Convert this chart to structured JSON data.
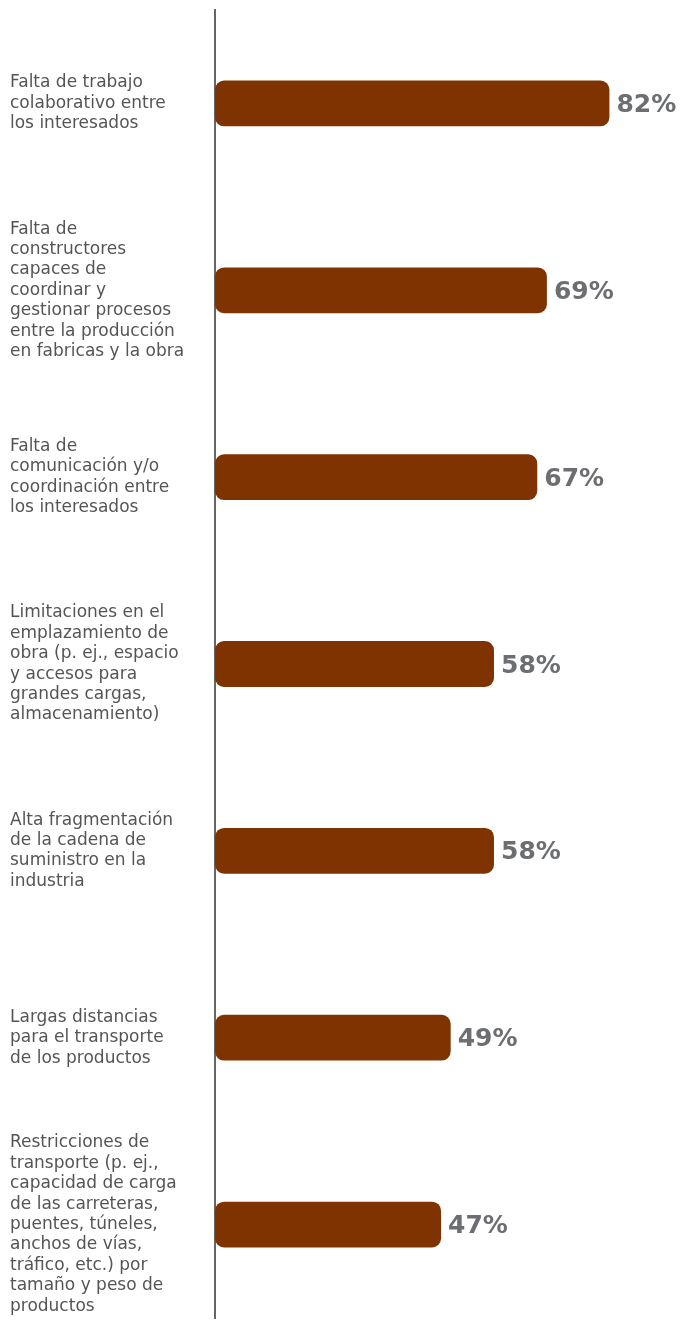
{
  "chart_data": {
    "type": "bar",
    "orientation": "horizontal",
    "categories": [
      "Falta de trabajo colaborativo entre los interesados",
      "Falta de constructores capaces de coordinar y gestionar procesos entre la producción en fabricas y la obra",
      "Falta de comunicación y/o coordinación entre los interesados",
      "Limitaciones en el emplazamiento de obra (p. ej., espacio y accesos para grandes cargas, almacenamiento)",
      "Alta fragmentación de la cadena de suministro en la industria",
      "Largas distancias para el transporte de los productos",
      "Restricciones de transporte (p. ej., capacidad de carga de las carreteras, puentes, túneles, anchos de vías, tráfico, etc.) por tamaño y peso de productos"
    ],
    "values": [
      82,
      69,
      67,
      58,
      58,
      49,
      47
    ],
    "value_labels": [
      "82%",
      "69%",
      "67%",
      "58%",
      "58%",
      "49%",
      "47%"
    ],
    "color": "#7f3300",
    "tick_labels": "y",
    "legend": false
  }
}
